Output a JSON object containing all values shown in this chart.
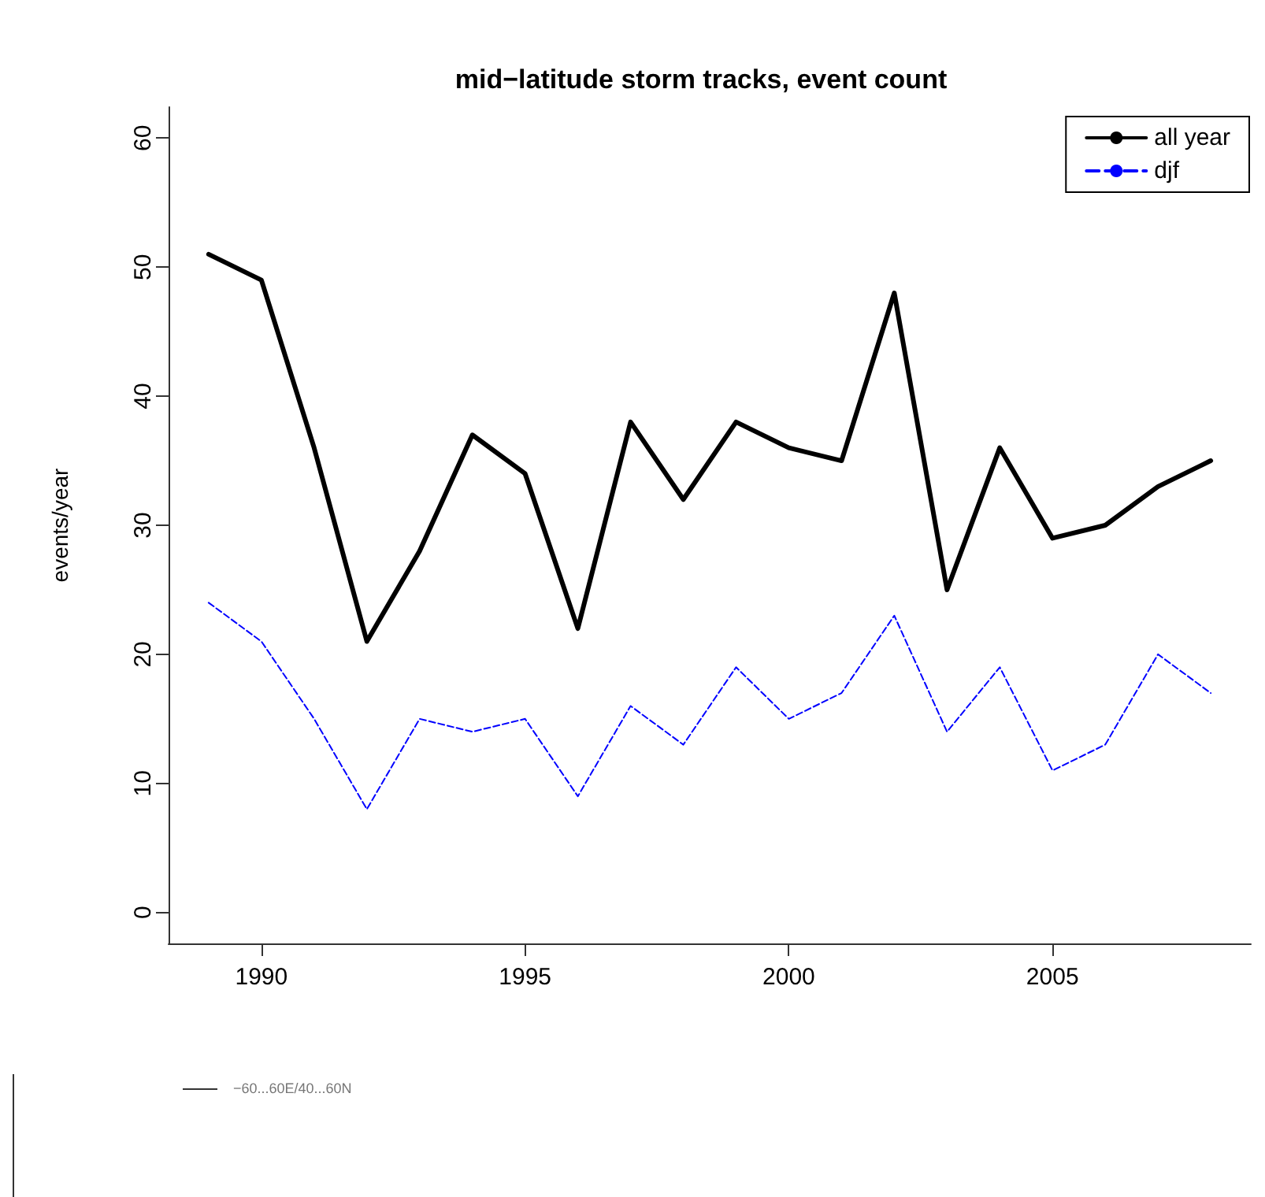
{
  "chart_data": {
    "type": "line",
    "title": "mid−latitude storm tracks, event count",
    "ylabel": "events/year",
    "x": [
      1989,
      1990,
      1991,
      1992,
      1993,
      1994,
      1995,
      1996,
      1997,
      1998,
      1999,
      2000,
      2001,
      2002,
      2003,
      2004,
      2005,
      2006,
      2007,
      2008
    ],
    "series": [
      {
        "name": "all year",
        "color": "#000000",
        "line_style": "solid",
        "values": [
          51,
          49,
          36,
          21,
          28,
          37,
          34,
          22,
          38,
          32,
          38,
          36,
          35,
          48,
          25,
          36,
          29,
          30,
          33,
          35
        ]
      },
      {
        "name": "djf",
        "color": "#0000ff",
        "line_style": "dashed",
        "values": [
          24,
          21,
          15,
          8,
          15,
          14,
          15,
          9,
          16,
          13,
          19,
          15,
          17,
          23,
          14,
          19,
          11,
          13,
          20,
          17
        ]
      }
    ],
    "xlim": [
      1988.24,
      2008.76
    ],
    "xticks": [
      1990,
      1995,
      2000,
      2005
    ],
    "ylim": [
      -2.4,
      62.4
    ],
    "yticks": [
      0,
      10,
      20,
      30,
      40,
      50,
      60
    ],
    "grid": false,
    "legend": "top right",
    "marker": "none",
    "annotations": [
      "−60...60E/40...60N"
    ]
  }
}
